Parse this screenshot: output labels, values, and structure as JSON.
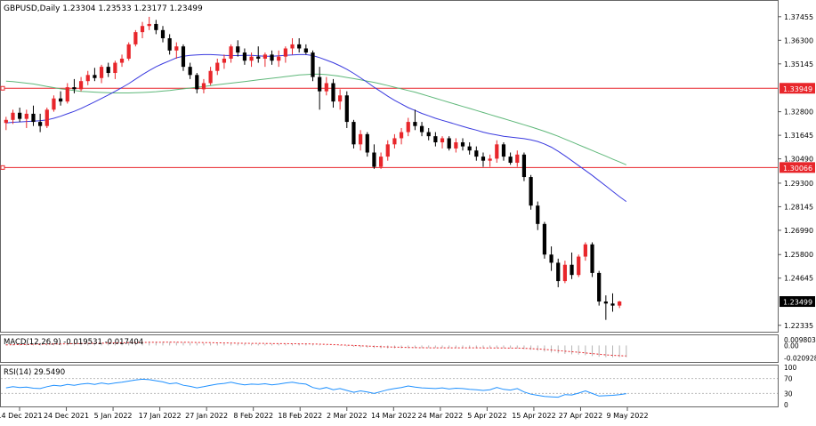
{
  "header": {
    "symbol_line": "GBPUSD,Daily  1.23304 1.23533 1.23177 1.23499"
  },
  "colors": {
    "bull": "#e8262b",
    "bear": "#000000",
    "ma_fast": "#3a3adf",
    "ma_slow": "#5fb87a",
    "hline": "#e8262b",
    "macd_signal": "#e8262b",
    "macd_hist": "#b4b4b4",
    "rsi": "#1e90ff",
    "grid": "#d8d8d8",
    "axis": "#555555"
  },
  "chart_data": [
    {
      "type": "candlestick",
      "name": "GBPUSD,Daily",
      "x": [
        "14 Dec 2021",
        "24 Dec 2021",
        "5 Jan 2022",
        "17 Jan 2022",
        "27 Jan 2022",
        "8 Feb 2022",
        "18 Feb 2022",
        "2 Mar 2022",
        "14 Mar 2022",
        "24 Mar 2022",
        "5 Apr 2022",
        "15 Apr 2022",
        "27 Apr 2022",
        "9 May 2022"
      ],
      "y_ticks": [
        "1.37455",
        "1.36300",
        "1.35145",
        "1.33949",
        "1.32800",
        "1.31645",
        "1.30490",
        "1.30066",
        "1.29300",
        "1.28145",
        "1.26990",
        "1.25800",
        "1.24645",
        "1.23499",
        "1.22335"
      ],
      "ylim": [
        1.2215,
        1.381
      ],
      "candles": [
        [
          1.3225,
          1.3255,
          1.319,
          1.324
        ],
        [
          1.324,
          1.329,
          1.322,
          1.3275
        ],
        [
          1.3275,
          1.33,
          1.323,
          1.3245
        ],
        [
          1.3245,
          1.329,
          1.32,
          1.327
        ],
        [
          1.327,
          1.331,
          1.321,
          1.323
        ],
        [
          1.323,
          1.327,
          1.318,
          1.321
        ],
        [
          1.321,
          1.33,
          1.32,
          1.329
        ],
        [
          1.329,
          1.336,
          1.328,
          1.3345
        ],
        [
          1.3345,
          1.338,
          1.331,
          1.333
        ],
        [
          1.333,
          1.342,
          1.332,
          1.34
        ],
        [
          1.34,
          1.344,
          1.337,
          1.339
        ],
        [
          1.339,
          1.345,
          1.338,
          1.343
        ],
        [
          1.343,
          1.348,
          1.341,
          1.346
        ],
        [
          1.346,
          1.3495,
          1.343,
          1.3445
        ],
        [
          1.3445,
          1.351,
          1.342,
          1.35
        ],
        [
          1.35,
          1.352,
          1.345,
          1.347
        ],
        [
          1.347,
          1.353,
          1.344,
          1.352
        ],
        [
          1.352,
          1.356,
          1.35,
          1.354
        ],
        [
          1.354,
          1.362,
          1.353,
          1.361
        ],
        [
          1.361,
          1.368,
          1.36,
          1.367
        ],
        [
          1.367,
          1.372,
          1.364,
          1.37
        ],
        [
          1.37,
          1.3745,
          1.368,
          1.371
        ],
        [
          1.371,
          1.373,
          1.366,
          1.368
        ],
        [
          1.368,
          1.37,
          1.362,
          1.364
        ],
        [
          1.364,
          1.366,
          1.356,
          1.358
        ],
        [
          1.358,
          1.362,
          1.354,
          1.36
        ],
        [
          1.36,
          1.361,
          1.348,
          1.35
        ],
        [
          1.35,
          1.352,
          1.344,
          1.346
        ],
        [
          1.346,
          1.347,
          1.337,
          1.339
        ],
        [
          1.339,
          1.344,
          1.337,
          1.342
        ],
        [
          1.342,
          1.35,
          1.341,
          1.348
        ],
        [
          1.348,
          1.354,
          1.346,
          1.352
        ],
        [
          1.352,
          1.356,
          1.349,
          1.354
        ],
        [
          1.354,
          1.361,
          1.352,
          1.36
        ],
        [
          1.36,
          1.363,
          1.355,
          1.357
        ],
        [
          1.357,
          1.359,
          1.351,
          1.353
        ],
        [
          1.353,
          1.357,
          1.35,
          1.355
        ],
        [
          1.355,
          1.36,
          1.352,
          1.354
        ],
        [
          1.354,
          1.357,
          1.35,
          1.356
        ],
        [
          1.356,
          1.358,
          1.351,
          1.353
        ],
        [
          1.353,
          1.358,
          1.35,
          1.355
        ],
        [
          1.355,
          1.36,
          1.352,
          1.359
        ],
        [
          1.359,
          1.364,
          1.356,
          1.361
        ],
        [
          1.361,
          1.364,
          1.357,
          1.359
        ],
        [
          1.359,
          1.361,
          1.356,
          1.357
        ],
        [
          1.357,
          1.358,
          1.343,
          1.345
        ],
        [
          1.345,
          1.35,
          1.329,
          1.338
        ],
        [
          1.338,
          1.345,
          1.336,
          1.342
        ],
        [
          1.342,
          1.344,
          1.33,
          1.333
        ],
        [
          1.333,
          1.339,
          1.329,
          1.336
        ],
        [
          1.336,
          1.338,
          1.32,
          1.323
        ],
        [
          1.323,
          1.324,
          1.31,
          1.312
        ],
        [
          1.312,
          1.319,
          1.309,
          1.317
        ],
        [
          1.317,
          1.318,
          1.306,
          1.308
        ],
        [
          1.308,
          1.312,
          1.3,
          1.301
        ],
        [
          1.301,
          1.308,
          1.3,
          1.306
        ],
        [
          1.306,
          1.314,
          1.304,
          1.312
        ],
        [
          1.312,
          1.317,
          1.31,
          1.315
        ],
        [
          1.315,
          1.32,
          1.312,
          1.318
        ],
        [
          1.318,
          1.325,
          1.316,
          1.323
        ],
        [
          1.323,
          1.329,
          1.319,
          1.321
        ],
        [
          1.321,
          1.323,
          1.316,
          1.318
        ],
        [
          1.318,
          1.32,
          1.314,
          1.316
        ],
        [
          1.316,
          1.318,
          1.311,
          1.313
        ],
        [
          1.313,
          1.316,
          1.31,
          1.315
        ],
        [
          1.315,
          1.316,
          1.309,
          1.31
        ],
        [
          1.31,
          1.315,
          1.308,
          1.313
        ],
        [
          1.313,
          1.315,
          1.309,
          1.311
        ],
        [
          1.311,
          1.313,
          1.307,
          1.309
        ],
        [
          1.309,
          1.311,
          1.304,
          1.306
        ],
        [
          1.306,
          1.308,
          1.301,
          1.304
        ],
        [
          1.304,
          1.307,
          1.301,
          1.305
        ],
        [
          1.305,
          1.314,
          1.303,
          1.312
        ],
        [
          1.312,
          1.313,
          1.304,
          1.306
        ],
        [
          1.306,
          1.308,
          1.302,
          1.303
        ],
        [
          1.303,
          1.309,
          1.301,
          1.307
        ],
        [
          1.307,
          1.308,
          1.294,
          1.296
        ],
        [
          1.296,
          1.297,
          1.28,
          1.282
        ],
        [
          1.282,
          1.284,
          1.27,
          1.273
        ],
        [
          1.273,
          1.274,
          1.256,
          1.258
        ],
        [
          1.258,
          1.262,
          1.25,
          1.254
        ],
        [
          1.254,
          1.256,
          1.242,
          1.245
        ],
        [
          1.245,
          1.255,
          1.244,
          1.253
        ],
        [
          1.253,
          1.259,
          1.246,
          1.248
        ],
        [
          1.248,
          1.258,
          1.247,
          1.257
        ],
        [
          1.257,
          1.264,
          1.255,
          1.263
        ],
        [
          1.263,
          1.264,
          1.247,
          1.249
        ],
        [
          1.249,
          1.25,
          1.233,
          1.235
        ],
        [
          1.235,
          1.238,
          1.226,
          1.234
        ],
        [
          1.234,
          1.239,
          1.23,
          1.233
        ],
        [
          1.233,
          1.2353,
          1.2318,
          1.235
        ]
      ],
      "ma_fast": [
        1.3225,
        1.3228,
        1.323,
        1.3232,
        1.3234,
        1.3236,
        1.324,
        1.3248,
        1.3258,
        1.327,
        1.3282,
        1.3296,
        1.3312,
        1.3328,
        1.3345,
        1.3362,
        1.338,
        1.3398,
        1.3418,
        1.344,
        1.3462,
        1.3482,
        1.35,
        1.3516,
        1.353,
        1.3544,
        1.3552,
        1.3556,
        1.3558,
        1.356,
        1.356,
        1.3558,
        1.3556,
        1.3555,
        1.3555,
        1.3556,
        1.3556,
        1.3554,
        1.3552,
        1.3552,
        1.3554,
        1.3556,
        1.3558,
        1.356,
        1.356,
        1.3555,
        1.3545,
        1.3533,
        1.352,
        1.3505,
        1.3488,
        1.3468,
        1.3446,
        1.3424,
        1.34,
        1.3378,
        1.3356,
        1.3336,
        1.3318,
        1.33,
        1.3286,
        1.3272,
        1.326,
        1.3248,
        1.3238,
        1.3228,
        1.3218,
        1.3208,
        1.3198,
        1.319,
        1.318,
        1.3172,
        1.3166,
        1.316,
        1.3156,
        1.3152,
        1.3148,
        1.3142,
        1.3134,
        1.3122,
        1.3106,
        1.3086,
        1.3064,
        1.304,
        1.3016,
        1.2992,
        1.2968,
        1.2942,
        1.2916,
        1.289,
        1.2864,
        1.284
      ],
      "ma_slow": [
        1.343,
        1.3428,
        1.3424,
        1.342,
        1.3416,
        1.341,
        1.3404,
        1.3398,
        1.3392,
        1.3388,
        1.3384,
        1.338,
        1.3378,
        1.3376,
        1.3374,
        1.3373,
        1.3372,
        1.3372,
        1.3372,
        1.3373,
        1.3374,
        1.3376,
        1.3378,
        1.3381,
        1.3384,
        1.3388,
        1.3392,
        1.3396,
        1.34,
        1.3404,
        1.3408,
        1.3412,
        1.3416,
        1.342,
        1.3424,
        1.3428,
        1.3432,
        1.3436,
        1.344,
        1.3444,
        1.3448,
        1.3452,
        1.3456,
        1.346,
        1.3462,
        1.3464,
        1.3464,
        1.3462,
        1.3458,
        1.3454,
        1.3448,
        1.3442,
        1.3436,
        1.343,
        1.3424,
        1.3416,
        1.3408,
        1.34,
        1.3392,
        1.3384,
        1.3376,
        1.3366,
        1.3356,
        1.3346,
        1.3336,
        1.3326,
        1.3316,
        1.3306,
        1.3296,
        1.3286,
        1.3276,
        1.3266,
        1.3256,
        1.3246,
        1.3236,
        1.3226,
        1.3216,
        1.3206,
        1.3195,
        1.3184,
        1.3172,
        1.316,
        1.3146,
        1.3132,
        1.3118,
        1.3104,
        1.309,
        1.3076,
        1.3062,
        1.3048,
        1.3034,
        1.302
      ],
      "hlines": [
        1.33949,
        1.30066
      ],
      "current_price": "1.23499"
    },
    {
      "type": "line",
      "name": "MACD(12,26,9)",
      "label": "MACD(12,26,9) -0.019531 -0.017404",
      "y_ticks": [
        "0.009803",
        "0.00",
        "-0.020928"
      ],
      "ylim": [
        -0.0245,
        0.0125
      ],
      "histogram": [
        0.002,
        0.0025,
        0.0028,
        0.003,
        0.0032,
        0.0034,
        0.0036,
        0.0038,
        0.004,
        0.0042,
        0.0044,
        0.0046,
        0.0048,
        0.005,
        0.0052,
        0.0054,
        0.0056,
        0.0058,
        0.006,
        0.0062,
        0.0063,
        0.0064,
        0.0063,
        0.0061,
        0.0058,
        0.0055,
        0.005,
        0.0045,
        0.004,
        0.0036,
        0.0034,
        0.0033,
        0.0032,
        0.0032,
        0.0031,
        0.003,
        0.0029,
        0.0028,
        0.0027,
        0.0026,
        0.0026,
        0.0025,
        0.0025,
        0.0024,
        0.0023,
        0.0018,
        0.001,
        0.0004,
        -0.0002,
        -0.0008,
        -0.0015,
        -0.0022,
        -0.003,
        -0.0036,
        -0.0042,
        -0.0046,
        -0.0048,
        -0.0048,
        -0.0047,
        -0.0045,
        -0.0044,
        -0.0043,
        -0.0042,
        -0.0041,
        -0.004,
        -0.004,
        -0.004,
        -0.004,
        -0.0041,
        -0.0042,
        -0.0043,
        -0.0043,
        -0.0043,
        -0.0044,
        -0.0045,
        -0.005,
        -0.006,
        -0.0072,
        -0.0088,
        -0.0102,
        -0.0118,
        -0.013,
        -0.014,
        -0.0148,
        -0.0152,
        -0.0162,
        -0.0176,
        -0.0188,
        -0.0195,
        -0.0197,
        -0.0195,
        -0.0195
      ],
      "signal": [
        0.001,
        0.0012,
        0.0014,
        0.0016,
        0.0018,
        0.002,
        0.0022,
        0.0024,
        0.0026,
        0.0028,
        0.003,
        0.0032,
        0.0034,
        0.0036,
        0.0038,
        0.004,
        0.0042,
        0.0044,
        0.0046,
        0.0048,
        0.005,
        0.0052,
        0.0053,
        0.0054,
        0.0054,
        0.0054,
        0.0053,
        0.0052,
        0.005,
        0.0048,
        0.0046,
        0.0044,
        0.0042,
        0.004,
        0.0038,
        0.0036,
        0.0035,
        0.0034,
        0.0033,
        0.0032,
        0.0031,
        0.003,
        0.0029,
        0.0028,
        0.0027,
        0.0025,
        0.0022,
        0.0018,
        0.0014,
        0.001,
        0.0005,
        0.0,
        -0.0005,
        -0.001,
        -0.0015,
        -0.002,
        -0.0024,
        -0.0028,
        -0.0031,
        -0.0034,
        -0.0036,
        -0.0038,
        -0.0039,
        -0.004,
        -0.004,
        -0.004,
        -0.004,
        -0.004,
        -0.004,
        -0.004,
        -0.0041,
        -0.0041,
        -0.0042,
        -0.0042,
        -0.0043,
        -0.0044,
        -0.0047,
        -0.0052,
        -0.0058,
        -0.0066,
        -0.0075,
        -0.0085,
        -0.0095,
        -0.0105,
        -0.0114,
        -0.0124,
        -0.0135,
        -0.0146,
        -0.0156,
        -0.0164,
        -0.017,
        -0.0174
      ]
    },
    {
      "type": "line",
      "name": "RSI(14)",
      "label": "RSI(14) 29.5490",
      "y_ticks": [
        "100",
        "70",
        "30",
        "0"
      ],
      "ylim": [
        0,
        100
      ],
      "values": [
        45,
        48,
        46,
        47,
        44,
        43,
        48,
        52,
        50,
        54,
        52,
        55,
        57,
        54,
        58,
        55,
        58,
        60,
        63,
        66,
        68,
        67,
        64,
        61,
        56,
        58,
        52,
        49,
        45,
        48,
        52,
        55,
        57,
        60,
        56,
        53,
        55,
        54,
        56,
        53,
        55,
        58,
        60,
        57,
        55,
        46,
        42,
        46,
        40,
        43,
        38,
        33,
        37,
        34,
        30,
        35,
        40,
        43,
        46,
        50,
        47,
        45,
        44,
        43,
        45,
        42,
        44,
        43,
        41,
        40,
        38,
        40,
        46,
        41,
        39,
        43,
        34,
        28,
        25,
        22,
        21,
        20,
        27,
        26,
        31,
        37,
        30,
        23,
        24,
        25,
        27,
        29.5
      ]
    }
  ],
  "x_axis_labels": [
    "14 Dec 2021",
    "24 Dec 2021",
    "5 Jan 2022",
    "17 Jan 2022",
    "27 Jan 2022",
    "8 Feb 2022",
    "18 Feb 2022",
    "2 Mar 2022",
    "14 Mar 2022",
    "24 Mar 2022",
    "5 Apr 2022",
    "15 Apr 2022",
    "27 Apr 2022",
    "9 May 2022"
  ]
}
